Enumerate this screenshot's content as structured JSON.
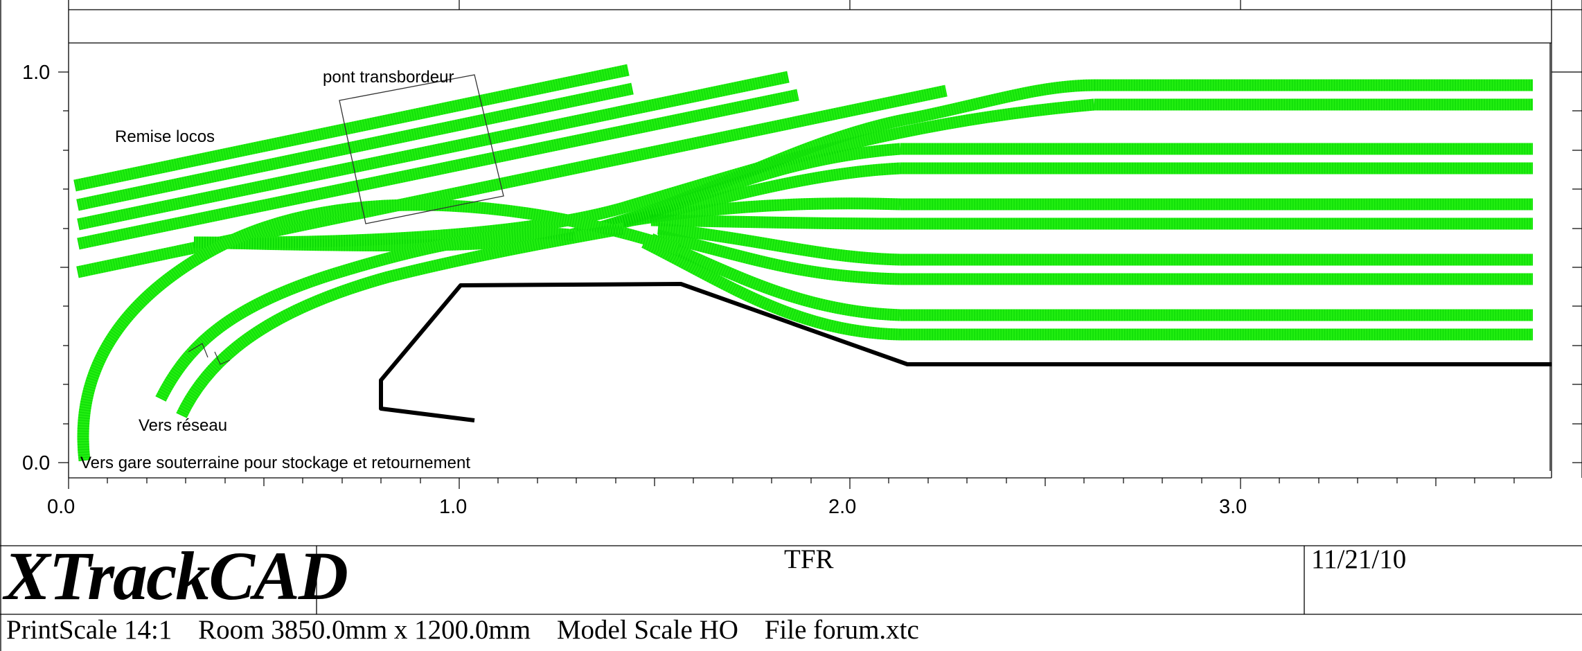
{
  "app": {
    "logo_text": "XTrackCAD"
  },
  "title_block": {
    "title": "TFR",
    "date": "11/21/10"
  },
  "status_bar": {
    "print_scale": "PrintScale 14:1",
    "room": "Room 3850.0mm x 1200.0mm",
    "model_scale": "Model Scale HO",
    "file": "File forum.xtc"
  },
  "axes": {
    "x_ticks": [
      "0.0",
      "1.0",
      "2.0",
      "3.0"
    ],
    "y_ticks": [
      "0.0",
      "1.0"
    ]
  },
  "annotations": {
    "transfer_table": "pont transbordeur",
    "engine_shed": "Remise locos",
    "to_network": "Vers réseau",
    "to_underground": "Vers gare souterraine pour stockage et retournement"
  },
  "colors": {
    "track": "#22ee11",
    "benchwork": "#000000"
  }
}
